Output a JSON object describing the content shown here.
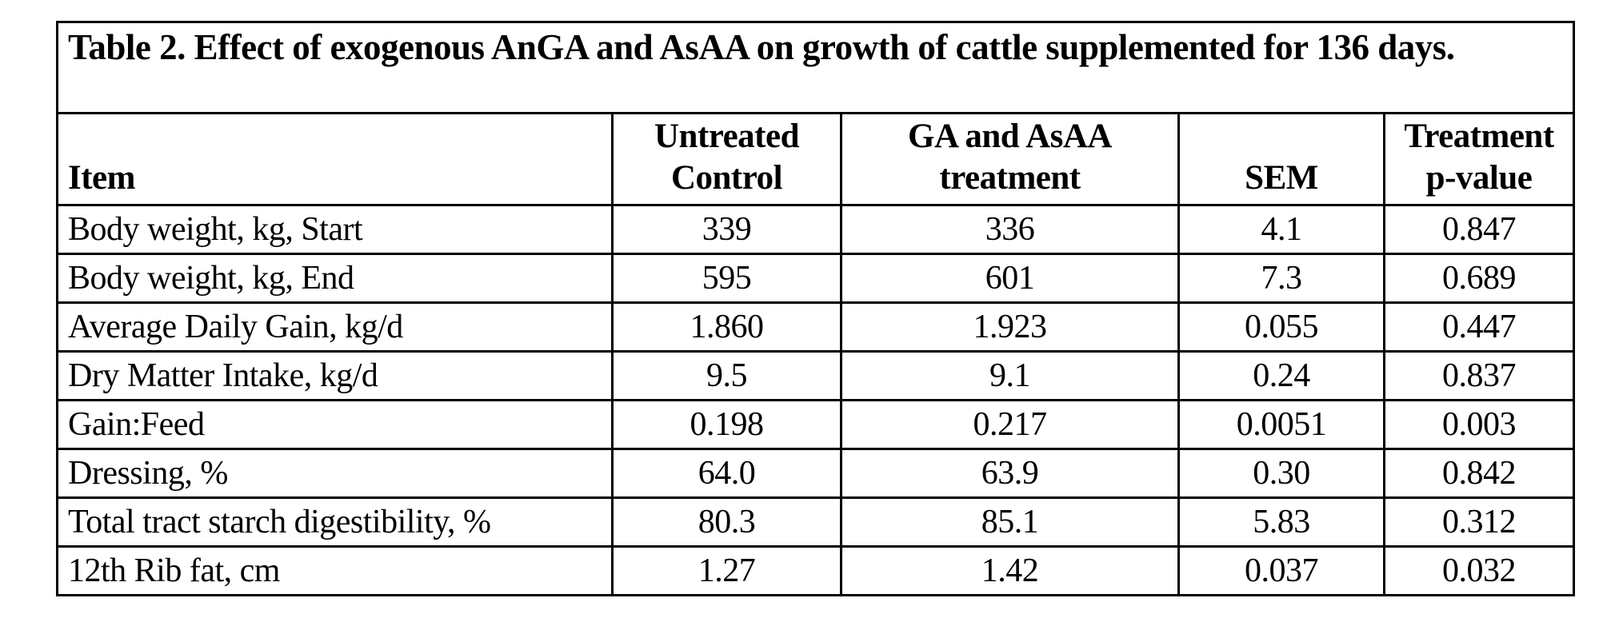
{
  "table": {
    "caption": "Table 2. Effect of exogenous AnGA and AsAA on growth of cattle supplemented for 136 days.",
    "columns": [
      "Item",
      "Untreated Control",
      "GA and AsAA treatment",
      "SEM",
      "Treatment p-value"
    ],
    "rows": [
      {
        "item": "Body weight, kg,  Start",
        "control": "339",
        "treatment": "336",
        "sem": "4.1",
        "pvalue": "0.847"
      },
      {
        "item": "Body weight, kg,  End",
        "control": "595",
        "treatment": "601",
        "sem": "7.3",
        "pvalue": "0.689"
      },
      {
        "item": "Average Daily Gain, kg/d",
        "control": "1.860",
        "treatment": "1.923",
        "sem": "0.055",
        "pvalue": "0.447"
      },
      {
        "item": "Dry Matter Intake, kg/d",
        "control": "9.5",
        "treatment": "9.1",
        "sem": "0.24",
        "pvalue": "0.837"
      },
      {
        "item": "Gain:Feed",
        "control": "0.198",
        "treatment": "0.217",
        "sem": "0.0051",
        "pvalue": "0.003"
      },
      {
        "item": "Dressing, %",
        "control": "64.0",
        "treatment": "63.9",
        "sem": "0.30",
        "pvalue": "0.842"
      },
      {
        "item": "Total tract starch digestibility, %",
        "control": "80.3",
        "treatment": "85.1",
        "sem": "5.83",
        "pvalue": "0.312"
      },
      {
        "item": "12th Rib fat, cm",
        "control": "1.27",
        "treatment": "1.42",
        "sem": "0.037",
        "pvalue": "0.032"
      }
    ]
  },
  "chart_data": {
    "type": "table",
    "title": "Table 2. Effect of exogenous AnGA and AsAA on growth of cattle supplemented for 136 days.",
    "columns": [
      "Item",
      "Untreated Control",
      "GA and AsAA treatment",
      "SEM",
      "Treatment p-value"
    ],
    "rows": [
      [
        "Body weight, kg, Start",
        339,
        336,
        4.1,
        0.847
      ],
      [
        "Body weight, kg, End",
        595,
        601,
        7.3,
        0.689
      ],
      [
        "Average Daily Gain, kg/d",
        1.86,
        1.923,
        0.055,
        0.447
      ],
      [
        "Dry Matter Intake, kg/d",
        9.5,
        9.1,
        0.24,
        0.837
      ],
      [
        "Gain:Feed",
        0.198,
        0.217,
        0.0051,
        0.003
      ],
      [
        "Dressing, %",
        64.0,
        63.9,
        0.3,
        0.842
      ],
      [
        "Total tract starch digestibility, %",
        80.3,
        85.1,
        5.83,
        0.312
      ],
      [
        "12th Rib fat, cm",
        1.27,
        1.42,
        0.037,
        0.032
      ]
    ]
  }
}
